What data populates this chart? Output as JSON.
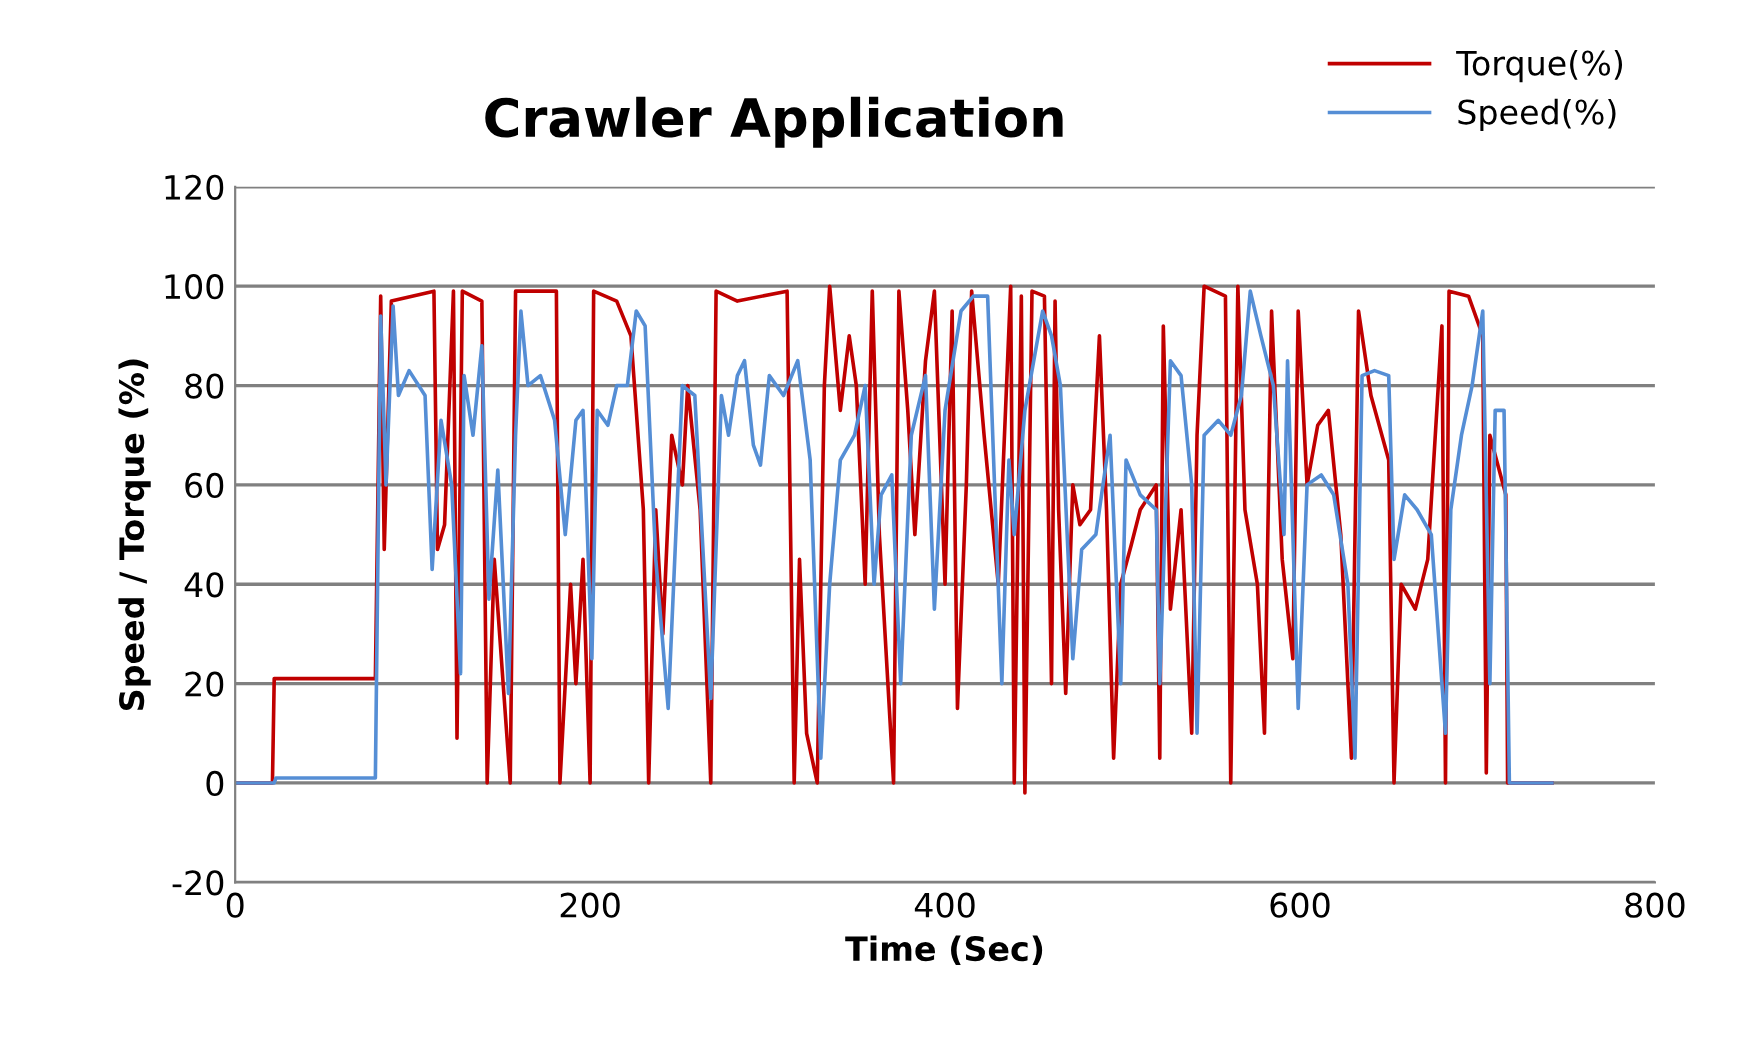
{
  "chart_data": {
    "type": "line",
    "title": "Crawler Application",
    "xlabel": "Time (Sec)",
    "ylabel": "Speed / Torque (%)",
    "xlim": [
      0,
      800
    ],
    "xticks": [
      0,
      200,
      400,
      600,
      800
    ],
    "ylim": [
      -20,
      120
    ],
    "yticks": [
      -20,
      0,
      20,
      40,
      60,
      80,
      100,
      120
    ],
    "grid": "y",
    "legend": "top right",
    "marker": "none",
    "line_style": "solid",
    "series": [
      {
        "name": "Torque(%)",
        "color": "#c00000",
        "x": [
          0,
          21,
          22,
          79,
          82,
          84,
          88,
          112,
          114,
          118,
          123,
          125,
          128,
          139,
          142,
          146,
          155,
          158,
          181,
          183,
          189,
          192,
          196,
          200,
          202,
          215,
          223,
          230,
          233,
          237,
          241,
          246,
          252,
          255,
          262,
          268,
          271,
          283,
          311,
          315,
          318,
          322,
          328,
          332,
          335,
          341,
          346,
          350,
          355,
          359,
          363,
          371,
          374,
          379,
          383,
          389,
          394,
          400,
          404,
          407,
          412,
          415,
          422,
          430,
          437,
          439,
          443,
          445,
          449,
          456,
          460,
          462,
          464,
          468,
          472,
          476,
          482,
          487,
          491,
          495,
          499,
          505,
          510,
          519,
          521,
          523,
          527,
          533,
          539,
          542,
          546,
          558,
          561,
          565,
          569,
          576,
          580,
          584,
          590,
          596,
          599,
          604,
          610,
          616,
          623,
          629,
          633,
          640,
          650,
          653,
          657,
          665,
          672,
          680,
          682,
          684,
          695,
          703,
          705,
          707,
          716,
          717,
          742
        ],
        "values": [
          0,
          0,
          21,
          21,
          98,
          47,
          97,
          99,
          47,
          52,
          99,
          9,
          99,
          97,
          0,
          45,
          0,
          99,
          99,
          0,
          40,
          20,
          45,
          0,
          99,
          97,
          90,
          55,
          0,
          55,
          30,
          70,
          60,
          80,
          55,
          0,
          99,
          97,
          99,
          0,
          45,
          10,
          0,
          80,
          100,
          75,
          90,
          80,
          40,
          99,
          50,
          0,
          99,
          75,
          50,
          85,
          99,
          40,
          95,
          15,
          60,
          99,
          70,
          40,
          100,
          0,
          98,
          -2,
          99,
          98,
          20,
          97,
          55,
          18,
          60,
          52,
          55,
          90,
          55,
          5,
          40,
          48,
          55,
          60,
          5,
          92,
          35,
          55,
          10,
          70,
          100,
          98,
          0,
          100,
          55,
          40,
          10,
          95,
          45,
          25,
          95,
          60,
          72,
          75,
          50,
          5,
          95,
          78,
          65,
          0,
          40,
          35,
          45,
          92,
          0,
          99,
          98,
          90,
          2,
          70,
          58,
          0,
          0
        ]
      },
      {
        "name": "Speed(%)",
        "color": "#558ed5",
        "x": [
          0,
          22,
          23,
          79,
          82,
          85,
          89,
          92,
          98,
          107,
          111,
          116,
          122,
          127,
          129,
          134,
          139,
          143,
          148,
          154,
          158,
          161,
          165,
          172,
          180,
          186,
          192,
          196,
          201,
          204,
          210,
          215,
          221,
          226,
          231,
          237,
          244,
          252,
          259,
          268,
          274,
          278,
          283,
          287,
          292,
          296,
          301,
          309,
          317,
          324,
          330,
          335,
          341,
          349,
          355,
          360,
          364,
          370,
          375,
          381,
          389,
          394,
          400,
          409,
          416,
          424,
          432,
          436,
          439,
          445,
          455,
          460,
          465,
          472,
          477,
          485,
          493,
          499,
          502,
          510,
          519,
          521,
          527,
          533,
          539,
          542,
          546,
          554,
          561,
          567,
          572,
          578,
          585,
          591,
          593,
          599,
          604,
          612,
          619,
          627,
          631,
          635,
          642,
          650,
          653,
          659,
          666,
          674,
          682,
          685,
          691,
          697,
          703,
          707,
          710,
          715,
          718,
          742
        ],
        "values": [
          0,
          0,
          1,
          1,
          94,
          60,
          96,
          78,
          83,
          78,
          43,
          73,
          60,
          22,
          82,
          70,
          88,
          37,
          63,
          18,
          70,
          95,
          80,
          82,
          73,
          50,
          73,
          75,
          25,
          75,
          72,
          80,
          80,
          95,
          92,
          45,
          15,
          80,
          78,
          17,
          78,
          70,
          82,
          85,
          68,
          64,
          82,
          78,
          85,
          65,
          5,
          40,
          65,
          70,
          80,
          40,
          58,
          62,
          20,
          70,
          82,
          35,
          75,
          95,
          98,
          98,
          20,
          65,
          50,
          75,
          95,
          90,
          80,
          25,
          47,
          50,
          70,
          20,
          65,
          58,
          55,
          20,
          85,
          82,
          60,
          10,
          70,
          73,
          70,
          78,
          99,
          90,
          80,
          50,
          85,
          15,
          60,
          62,
          58,
          40,
          5,
          82,
          83,
          82,
          45,
          58,
          55,
          50,
          10,
          55,
          70,
          80,
          95,
          20,
          75,
          75,
          0,
          0
        ]
      }
    ]
  }
}
